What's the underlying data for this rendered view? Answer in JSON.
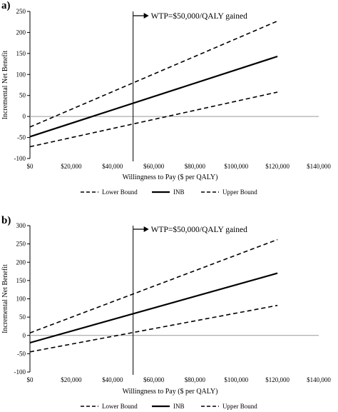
{
  "chart_data": [
    {
      "type": "line",
      "panel_label": "a)",
      "xlabel": "Willingness to Pay ($ per QALY)",
      "ylabel": "Incremental Net Benefit",
      "xlim": [
        0,
        140000
      ],
      "ylim": [
        -100,
        250
      ],
      "x_ticks": [
        0,
        20000,
        40000,
        60000,
        80000,
        100000,
        120000,
        140000
      ],
      "x_tick_labels": [
        "$0",
        "$20,000",
        "$40,000",
        "$60,000",
        "$80,000",
        "$100,000",
        "$120,000",
        "$140,000"
      ],
      "y_ticks": [
        -100,
        -50,
        0,
        50,
        100,
        150,
        200,
        250
      ],
      "y_tick_labels": [
        "-100",
        "-50",
        "0",
        "50",
        "100",
        "150",
        "200",
        "250"
      ],
      "grid": false,
      "legend_position": "bottom",
      "series": [
        {
          "name": "Lower Bound",
          "style": "dashed",
          "x": [
            0,
            120000
          ],
          "y": [
            -72,
            58
          ]
        },
        {
          "name": "INB",
          "style": "solid",
          "x": [
            0,
            120000
          ],
          "y": [
            -48,
            143
          ]
        },
        {
          "name": "Upper Bound",
          "style": "dashed",
          "x": [
            0,
            120000
          ],
          "y": [
            -25,
            227
          ]
        }
      ],
      "annotation": {
        "text": "WTP=$50,000/QALY gained",
        "x": 50000
      }
    },
    {
      "type": "line",
      "panel_label": "b)",
      "xlabel": "Willingness to Pay ($ per QALY)",
      "ylabel": "Incremental Net Benefit",
      "xlim": [
        0,
        140000
      ],
      "ylim": [
        -100,
        300
      ],
      "x_ticks": [
        0,
        20000,
        40000,
        60000,
        80000,
        100000,
        120000,
        140000
      ],
      "x_tick_labels": [
        "$0",
        "$20,000",
        "$40,000",
        "$60,000",
        "$80,000",
        "$100,000",
        "$120,000",
        "$140,000"
      ],
      "y_ticks": [
        -100,
        -50,
        0,
        50,
        100,
        150,
        200,
        250,
        300
      ],
      "y_tick_labels": [
        "-100",
        "-50",
        "0",
        "50",
        "100",
        "150",
        "200",
        "250",
        "300"
      ],
      "grid": false,
      "legend_position": "bottom",
      "series": [
        {
          "name": "Lower Bound",
          "style": "dashed",
          "x": [
            0,
            120000
          ],
          "y": [
            -45,
            82
          ]
        },
        {
          "name": "INB",
          "style": "solid",
          "x": [
            0,
            120000
          ],
          "y": [
            -20,
            170
          ]
        },
        {
          "name": "Upper Bound",
          "style": "dashed",
          "x": [
            0,
            120000
          ],
          "y": [
            7,
            262
          ]
        }
      ],
      "annotation": {
        "text": "WTP=$50,000/QALY gained",
        "x": 50000
      }
    }
  ]
}
